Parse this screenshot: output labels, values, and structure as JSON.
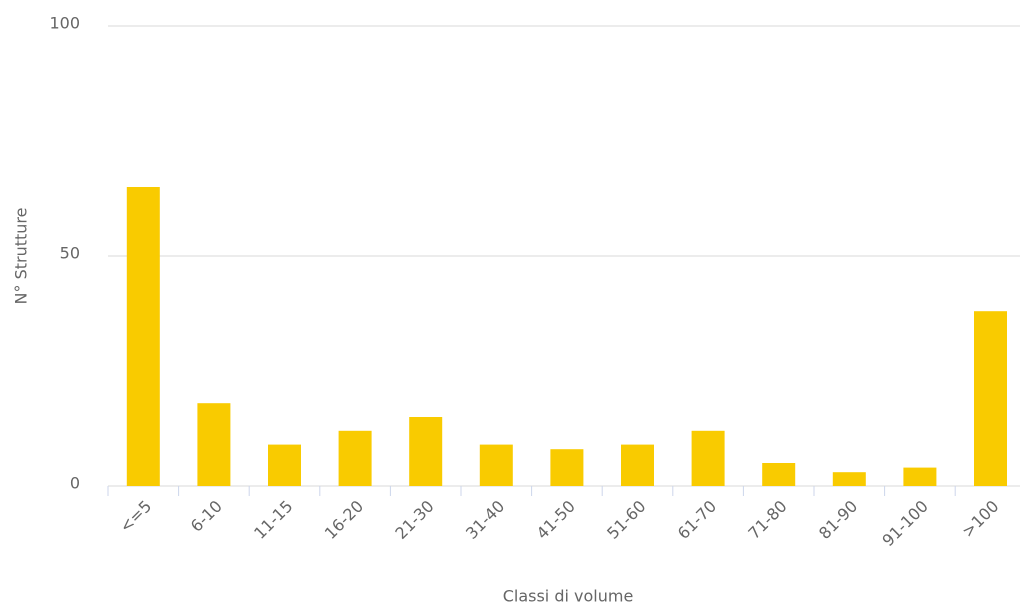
{
  "chart_data": {
    "type": "bar",
    "x_label": "Classi di volume",
    "y_label": "N° Strutture",
    "categories": [
      "<=5",
      "6-10",
      "11-15",
      "16-20",
      "21-30",
      "31-40",
      "41-50",
      "51-60",
      "61-70",
      "71-80",
      "81-90",
      "91-100",
      ">100"
    ],
    "values": [
      65,
      18,
      9,
      12,
      15,
      9,
      8,
      9,
      12,
      5,
      3,
      4,
      38
    ],
    "color": "#f9cb00",
    "ylim": [
      0,
      100
    ],
    "yticks": [
      0,
      50,
      100
    ],
    "grid": true
  }
}
